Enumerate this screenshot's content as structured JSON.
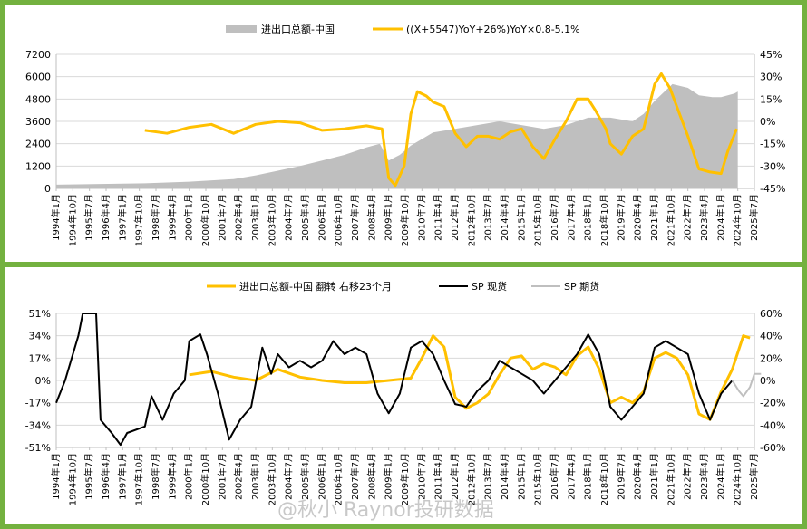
{
  "watermark": "@秋小 Raynor投研数据",
  "x_labels": [
    "1994年1月",
    "1994年10月",
    "1995年7月",
    "1996年4月",
    "1997年1月",
    "1997年10月",
    "1998年7月",
    "1999年4月",
    "2000年1月",
    "2000年10月",
    "2001年7月",
    "2002年4月",
    "2003年1月",
    "2003年10月",
    "2004年7月",
    "2005年4月",
    "2006年1月",
    "2006年10月",
    "2007年7月",
    "2008年4月",
    "2009年1月",
    "2009年10月",
    "2010年7月",
    "2011年4月",
    "2012年1月",
    "2012年10月",
    "2013年7月",
    "2014年4月",
    "2015年1月",
    "2015年10月",
    "2016年7月",
    "2017年4月",
    "2018年1月",
    "2018年10月",
    "2019年7月",
    "2020年4月",
    "2021年1月",
    "2021年10月",
    "2022年7月",
    "2023年4月",
    "2024年1月",
    "2024年10月",
    "2025年7月"
  ],
  "chart_data": [
    {
      "type": "area",
      "title": "",
      "colors": {
        "area": "#bfbfbf",
        "line": "#ffc000"
      },
      "legend": [
        "进出口总额-中国",
        "((X+5547)YoY+26%)YoY×0.8-5.1%"
      ],
      "legend_position": "top",
      "y_left": {
        "ticks": [
          "0",
          "1200",
          "2400",
          "3600",
          "4800",
          "6000",
          "7200"
        ],
        "range": [
          0,
          7200
        ]
      },
      "y_right": {
        "ticks": [
          "-45%",
          "-30%",
          "-15%",
          "0%",
          "15%",
          "30%",
          "45%"
        ],
        "range": [
          -45,
          45
        ]
      },
      "series": [
        {
          "name": "进出口总额-中国",
          "axis": "left",
          "type": "area",
          "points": [
            [
              1994.0,
              200
            ],
            [
              1996.0,
              240
            ],
            [
              1998.0,
              270
            ],
            [
              2000.0,
              360
            ],
            [
              2002.0,
              500
            ],
            [
              2003.0,
              700
            ],
            [
              2004.0,
              950
            ],
            [
              2005.0,
              1200
            ],
            [
              2006.0,
              1500
            ],
            [
              2007.0,
              1800
            ],
            [
              2008.0,
              2200
            ],
            [
              2008.6,
              2400
            ],
            [
              2009.0,
              1500
            ],
            [
              2009.5,
              1800
            ],
            [
              2010.0,
              2300
            ],
            [
              2011.0,
              3000
            ],
            [
              2012.0,
              3200
            ],
            [
              2013.0,
              3400
            ],
            [
              2014.0,
              3600
            ],
            [
              2015.0,
              3400
            ],
            [
              2016.0,
              3200
            ],
            [
              2017.0,
              3400
            ],
            [
              2018.0,
              3800
            ],
            [
              2019.0,
              3800
            ],
            [
              2020.0,
              3600
            ],
            [
              2020.5,
              4000
            ],
            [
              2021.0,
              4700
            ],
            [
              2021.8,
              5600
            ],
            [
              2022.5,
              5400
            ],
            [
              2023.0,
              5000
            ],
            [
              2023.6,
              4900
            ],
            [
              2024.0,
              4900
            ],
            [
              2024.6,
              5100
            ],
            [
              2024.75,
              5200
            ]
          ]
        },
        {
          "name": "((X+5547)YoY+26%)YoY×0.8-5.1%",
          "axis": "right",
          "type": "line",
          "points": [
            [
              1998.0,
              -6
            ],
            [
              1999.0,
              -8
            ],
            [
              2000.0,
              -4
            ],
            [
              2001.0,
              -2
            ],
            [
              2002.0,
              -8
            ],
            [
              2003.0,
              -2
            ],
            [
              2004.0,
              0
            ],
            [
              2005.0,
              -1
            ],
            [
              2006.0,
              -6
            ],
            [
              2007.0,
              -5
            ],
            [
              2008.0,
              -3
            ],
            [
              2008.7,
              -5
            ],
            [
              2009.0,
              -38
            ],
            [
              2009.3,
              -43
            ],
            [
              2009.7,
              -30
            ],
            [
              2010.0,
              5
            ],
            [
              2010.3,
              20
            ],
            [
              2010.7,
              17
            ],
            [
              2011.0,
              13
            ],
            [
              2011.5,
              10
            ],
            [
              2012.0,
              -8
            ],
            [
              2012.5,
              -17
            ],
            [
              2013.0,
              -10
            ],
            [
              2013.5,
              -10
            ],
            [
              2014.0,
              -12
            ],
            [
              2014.5,
              -7
            ],
            [
              2015.0,
              -5
            ],
            [
              2015.5,
              -17
            ],
            [
              2016.0,
              -25
            ],
            [
              2016.5,
              -12
            ],
            [
              2017.0,
              0
            ],
            [
              2017.5,
              15
            ],
            [
              2018.0,
              15
            ],
            [
              2018.3,
              8
            ],
            [
              2018.8,
              -5
            ],
            [
              2019.0,
              -15
            ],
            [
              2019.5,
              -22
            ],
            [
              2020.0,
              -10
            ],
            [
              2020.5,
              -5
            ],
            [
              2021.0,
              25
            ],
            [
              2021.3,
              32
            ],
            [
              2021.7,
              22
            ],
            [
              2022.0,
              10
            ],
            [
              2022.5,
              -10
            ],
            [
              2023.0,
              -32
            ],
            [
              2023.5,
              -34
            ],
            [
              2024.0,
              -35
            ],
            [
              2024.3,
              -20
            ],
            [
              2024.7,
              -5
            ]
          ]
        }
      ]
    },
    {
      "type": "line",
      "title": "",
      "colors": {
        "china": "#ffc000",
        "spot": "#000000",
        "futures": "#bfbfbf"
      },
      "legend": [
        "进出口总额-中国 翻转 右移23个月",
        "SP 现货",
        "SP 期货"
      ],
      "legend_position": "top",
      "y_left": {
        "ticks": [
          "-51%",
          "-34%",
          "-17%",
          "0%",
          "17%",
          "34%",
          "51%"
        ],
        "range": [
          -51,
          51
        ]
      },
      "y_right": {
        "ticks": [
          "-60%",
          "-40%",
          "-20%",
          "0%",
          "20%",
          "40%",
          "60%"
        ],
        "range": [
          -60,
          60
        ]
      },
      "series": [
        {
          "name": "进出口总额-中国 翻转 右移23个月",
          "axis": "right",
          "color": "#ffc000",
          "points": [
            [
              2000.0,
              5
            ],
            [
              2001.0,
              8
            ],
            [
              2002.0,
              3
            ],
            [
              2003.0,
              0
            ],
            [
              2004.0,
              10
            ],
            [
              2005.0,
              3
            ],
            [
              2006.0,
              0
            ],
            [
              2007.0,
              -2
            ],
            [
              2008.0,
              -2
            ],
            [
              2009.0,
              0
            ],
            [
              2010.0,
              2
            ],
            [
              2010.5,
              20
            ],
            [
              2011.0,
              40
            ],
            [
              2011.5,
              30
            ],
            [
              2012.0,
              -15
            ],
            [
              2012.5,
              -25
            ],
            [
              2013.0,
              -20
            ],
            [
              2013.5,
              -12
            ],
            [
              2014.0,
              5
            ],
            [
              2014.5,
              20
            ],
            [
              2015.0,
              22
            ],
            [
              2015.5,
              10
            ],
            [
              2016.0,
              15
            ],
            [
              2016.5,
              12
            ],
            [
              2017.0,
              5
            ],
            [
              2017.5,
              22
            ],
            [
              2018.0,
              30
            ],
            [
              2018.5,
              10
            ],
            [
              2019.0,
              -20
            ],
            [
              2019.5,
              -15
            ],
            [
              2020.0,
              -20
            ],
            [
              2020.5,
              -10
            ],
            [
              2021.0,
              20
            ],
            [
              2021.5,
              25
            ],
            [
              2022.0,
              20
            ],
            [
              2022.5,
              5
            ],
            [
              2023.0,
              -30
            ],
            [
              2023.5,
              -35
            ],
            [
              2024.0,
              -10
            ],
            [
              2024.5,
              10
            ],
            [
              2025.0,
              40
            ],
            [
              2025.3,
              38
            ]
          ]
        },
        {
          "name": "SP 现货",
          "axis": "left",
          "color": "#000000",
          "points": [
            [
              1994.0,
              -17
            ],
            [
              1994.4,
              0
            ],
            [
              1994.7,
              17
            ],
            [
              1995.0,
              34
            ],
            [
              1995.2,
              51
            ],
            [
              1995.8,
              51
            ],
            [
              1996.0,
              -30
            ],
            [
              1996.5,
              -40
            ],
            [
              1996.9,
              -49
            ],
            [
              1997.2,
              -40
            ],
            [
              1998.0,
              -35
            ],
            [
              1998.3,
              -12
            ],
            [
              1998.8,
              -30
            ],
            [
              1999.3,
              -10
            ],
            [
              1999.8,
              0
            ],
            [
              2000.0,
              30
            ],
            [
              2000.5,
              35
            ],
            [
              2000.8,
              20
            ],
            [
              2001.3,
              -10
            ],
            [
              2001.8,
              -45
            ],
            [
              2002.3,
              -30
            ],
            [
              2002.8,
              -20
            ],
            [
              2003.3,
              25
            ],
            [
              2003.7,
              5
            ],
            [
              2004.0,
              20
            ],
            [
              2004.5,
              10
            ],
            [
              2005.0,
              15
            ],
            [
              2005.5,
              10
            ],
            [
              2006.0,
              15
            ],
            [
              2006.5,
              30
            ],
            [
              2007.0,
              20
            ],
            [
              2007.5,
              25
            ],
            [
              2008.0,
              20
            ],
            [
              2008.5,
              -10
            ],
            [
              2009.0,
              -25
            ],
            [
              2009.5,
              -10
            ],
            [
              2010.0,
              25
            ],
            [
              2010.5,
              30
            ],
            [
              2011.0,
              20
            ],
            [
              2011.5,
              0
            ],
            [
              2012.0,
              -18
            ],
            [
              2012.5,
              -20
            ],
            [
              2013.0,
              -8
            ],
            [
              2013.5,
              0
            ],
            [
              2014.0,
              15
            ],
            [
              2014.5,
              10
            ],
            [
              2015.0,
              5
            ],
            [
              2015.5,
              0
            ],
            [
              2016.0,
              -10
            ],
            [
              2016.5,
              0
            ],
            [
              2017.0,
              10
            ],
            [
              2017.5,
              20
            ],
            [
              2018.0,
              35
            ],
            [
              2018.5,
              20
            ],
            [
              2019.0,
              -20
            ],
            [
              2019.5,
              -30
            ],
            [
              2020.0,
              -20
            ],
            [
              2020.5,
              -10
            ],
            [
              2021.0,
              25
            ],
            [
              2021.5,
              30
            ],
            [
              2022.0,
              25
            ],
            [
              2022.5,
              20
            ],
            [
              2023.0,
              -10
            ],
            [
              2023.5,
              -30
            ],
            [
              2024.0,
              -10
            ],
            [
              2024.5,
              0
            ]
          ]
        },
        {
          "name": "SP 期货",
          "axis": "left",
          "color": "#bfbfbf",
          "points": [
            [
              2024.5,
              0
            ],
            [
              2024.8,
              -8
            ],
            [
              2025.0,
              -12
            ],
            [
              2025.3,
              -5
            ],
            [
              2025.5,
              5
            ],
            [
              2025.8,
              5
            ]
          ]
        }
      ]
    }
  ]
}
